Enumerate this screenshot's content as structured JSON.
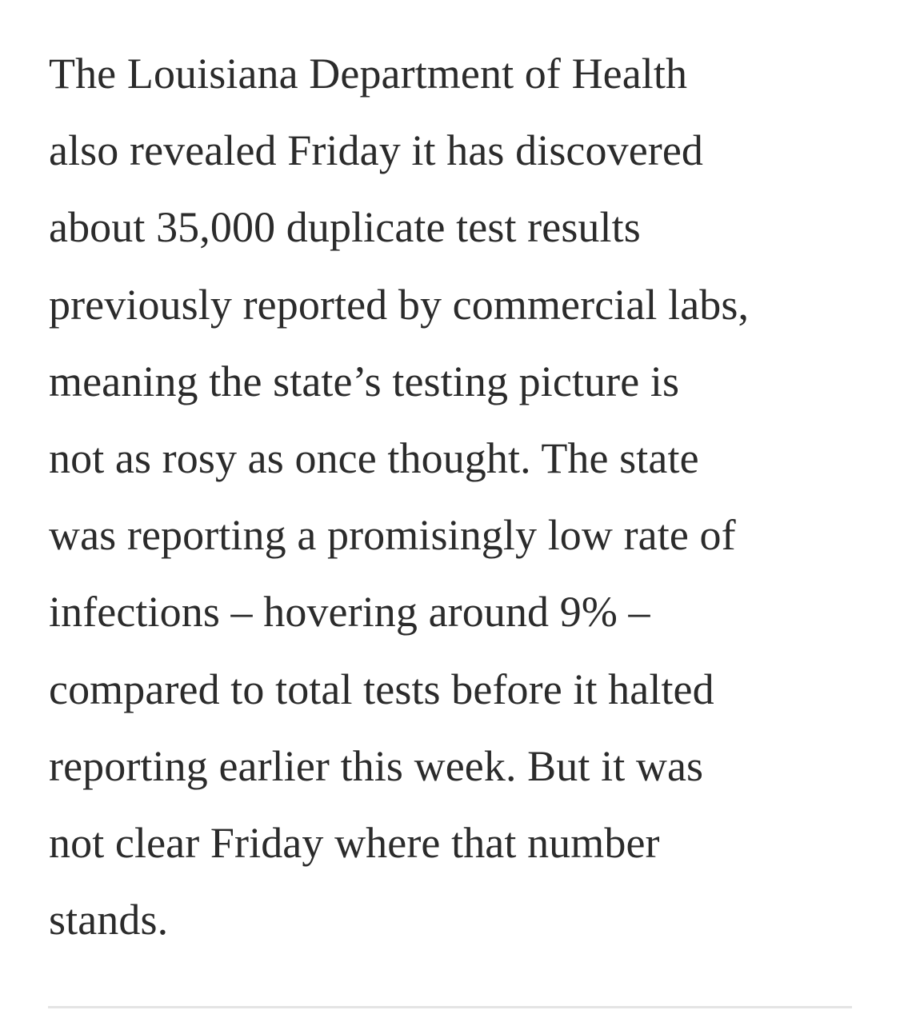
{
  "article": {
    "paragraph_lines": [
      "The Louisiana Department of Health",
      "also revealed Friday it has discovered",
      "about 35,000 duplicate test results",
      "previously reported by commercial labs,",
      "meaning the state’s testing picture is",
      "not as rosy as once thought. The state",
      "was reporting a promisingly low rate of",
      "infections – hovering around 9% –",
      "compared to total tests before it halted",
      "reporting earlier this week. But it was",
      "not clear Friday where that number",
      "stands."
    ]
  }
}
